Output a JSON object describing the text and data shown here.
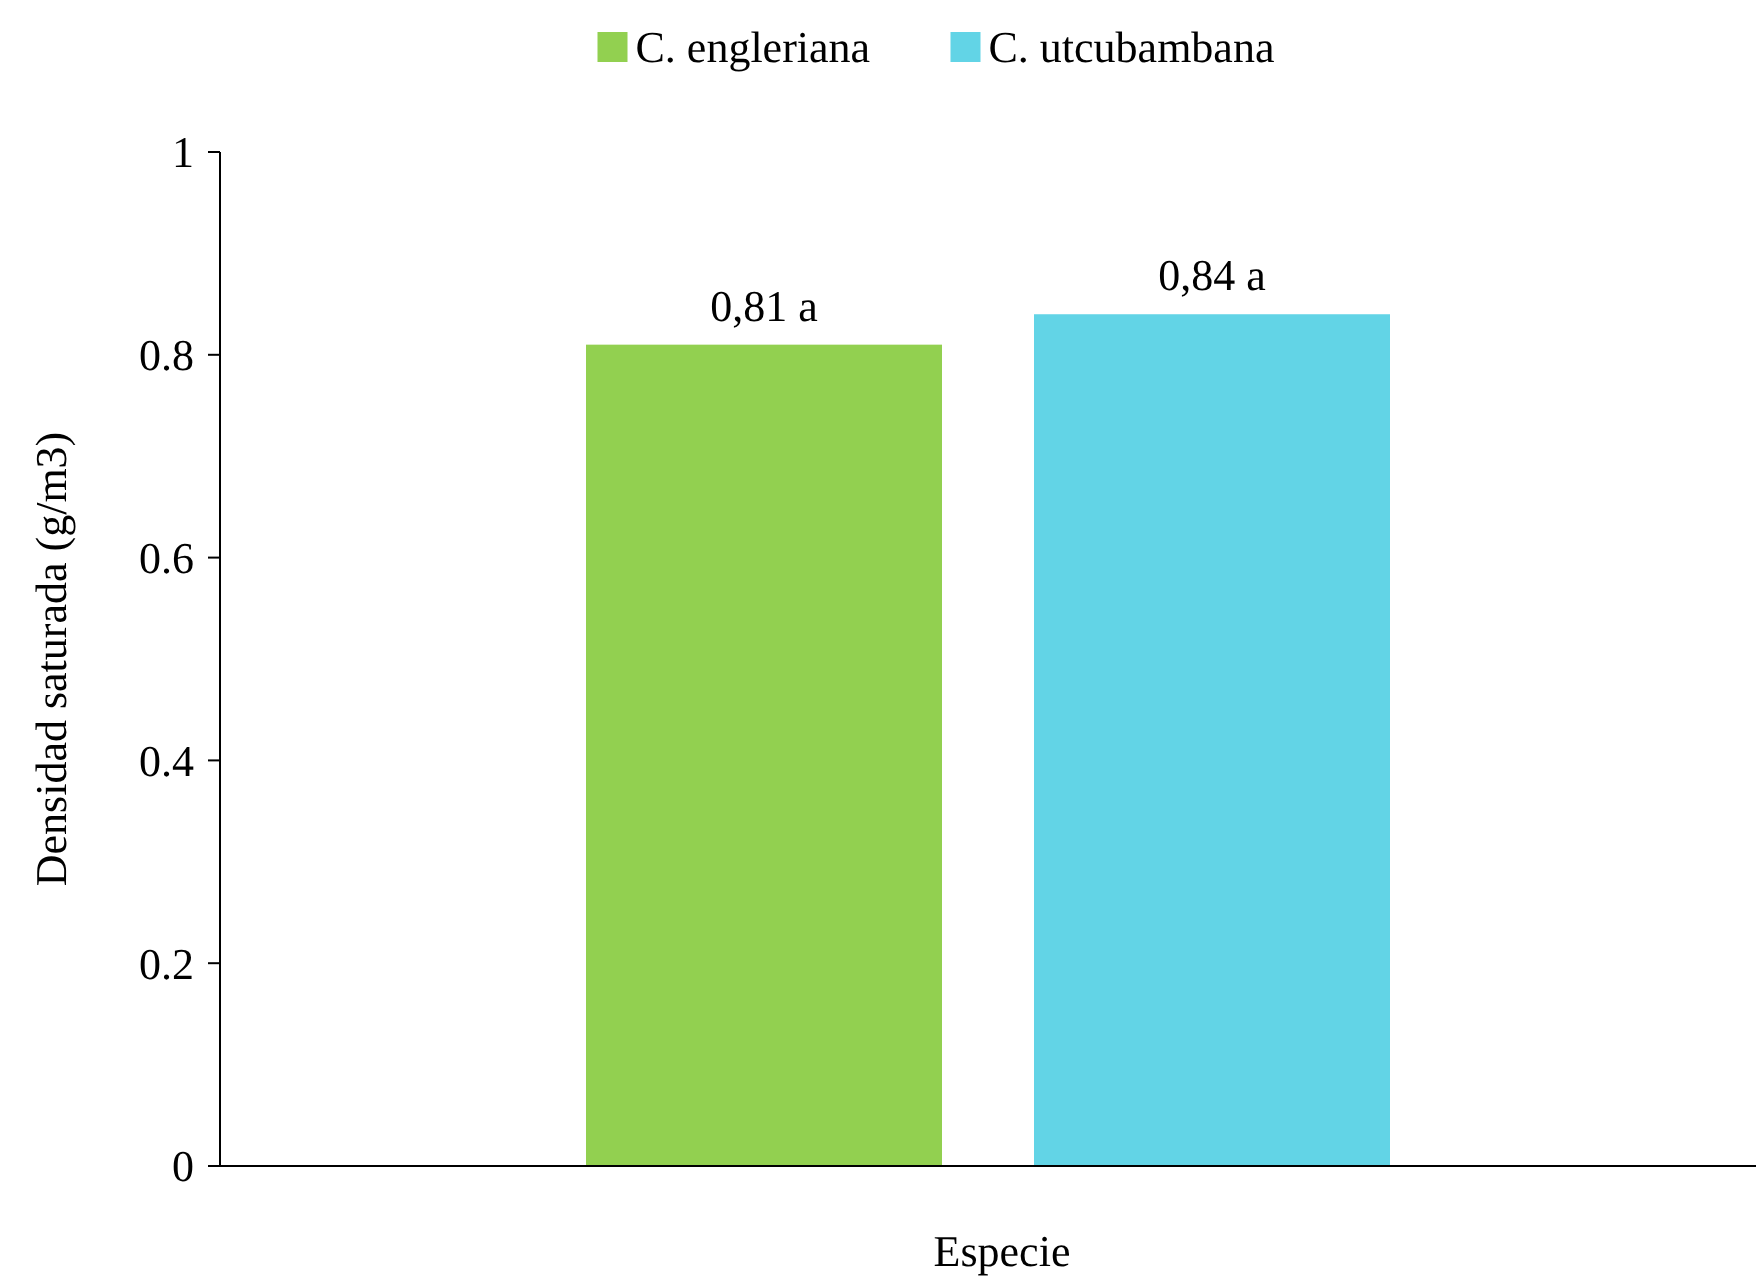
{
  "chart_data": {
    "type": "bar",
    "xlabel": "Especie",
    "ylabel": "Densidad saturada (g/m3)",
    "categories": [
      null
    ],
    "series": [
      {
        "name": "C. engleriana",
        "color": "#92d050",
        "values": [
          0.81
        ],
        "value_labels": [
          "0,81 a"
        ]
      },
      {
        "name": "C. utcubambana",
        "color": "#62d4e6",
        "values": [
          0.84
        ],
        "value_labels": [
          "0,84 a"
        ]
      }
    ],
    "ylim": [
      0,
      1
    ],
    "yticks": [
      0,
      0.2,
      0.4,
      0.6,
      0.8,
      1
    ],
    "grid": false,
    "legend": "top"
  }
}
